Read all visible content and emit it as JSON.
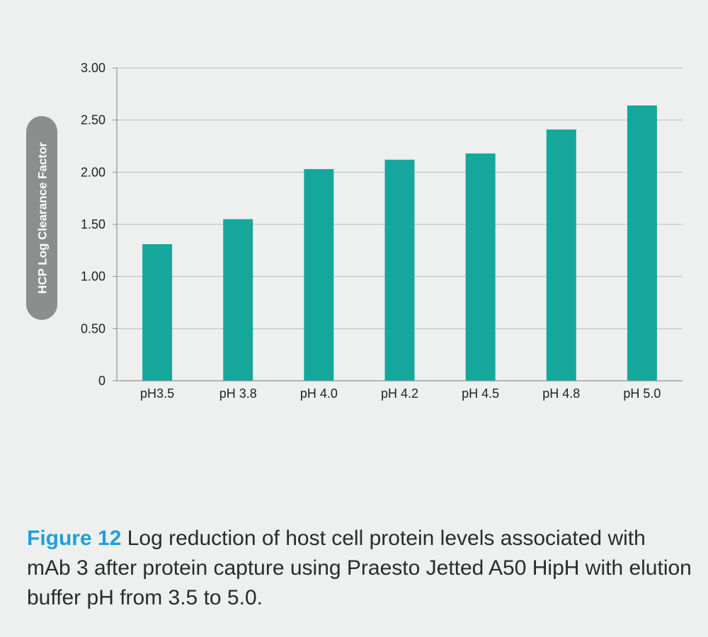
{
  "chart_data": {
    "type": "bar",
    "categories": [
      "pH3.5",
      "pH 3.8",
      "pH 4.0",
      "pH 4.2",
      "pH 4.5",
      "pH 4.8",
      "pH 5.0"
    ],
    "values": [
      1.31,
      1.55,
      2.03,
      2.12,
      2.18,
      2.41,
      2.64
    ],
    "ylabel": "HCP Log Clearance Factor",
    "xlabel": "",
    "ylim": [
      0,
      3
    ],
    "yticks": [
      0,
      0.5,
      1,
      1.5,
      2,
      2.5,
      3
    ],
    "ytick_labels": [
      "0",
      "0.50",
      "1.00",
      "1.50",
      "2.00",
      "2.50",
      "3.00"
    ],
    "grid": true,
    "colors": {
      "bar": "#16a79c",
      "grid": "#b8bdbc",
      "axis": "#8e9392",
      "ylabel_pill": "#8a8f8e"
    }
  },
  "caption": {
    "label": "Figure 12",
    "text": " Log reduction of host cell protein levels associated with mAb 3 after protein capture using Praesto Jetted A50 HipH with elution buffer pH from 3.5 to 5.0."
  }
}
